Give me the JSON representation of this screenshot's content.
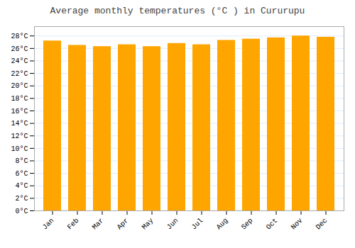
{
  "chart_data": {
    "type": "bar",
    "title": "Average monthly temperatures (°C ) in Cururupu",
    "categories": [
      "Jan",
      "Feb",
      "Mar",
      "Apr",
      "May",
      "Jun",
      "Jul",
      "Aug",
      "Sep",
      "Oct",
      "Nov",
      "Dec"
    ],
    "values": [
      27.2,
      26.5,
      26.3,
      26.6,
      26.3,
      26.8,
      26.6,
      27.3,
      27.5,
      27.7,
      28.0,
      27.8
    ],
    "color": "#FFA500",
    "ylim": [
      0,
      29.5
    ],
    "yticks": [
      {
        "value": 0,
        "label": "0°C"
      },
      {
        "value": 2,
        "label": "2°C"
      },
      {
        "value": 4,
        "label": "4°C"
      },
      {
        "value": 6,
        "label": "6°C"
      },
      {
        "value": 8,
        "label": "8°C"
      },
      {
        "value": 10,
        "label": "10°C"
      },
      {
        "value": 12,
        "label": "12°C"
      },
      {
        "value": 14,
        "label": "14°C"
      },
      {
        "value": 16,
        "label": "16°C"
      },
      {
        "value": 18,
        "label": "18°C"
      },
      {
        "value": 20,
        "label": "20°C"
      },
      {
        "value": 22,
        "label": "22°C"
      },
      {
        "value": 24,
        "label": "24°C"
      },
      {
        "value": 26,
        "label": "26°C"
      },
      {
        "value": 28,
        "label": "28°C"
      }
    ],
    "grid": true
  }
}
